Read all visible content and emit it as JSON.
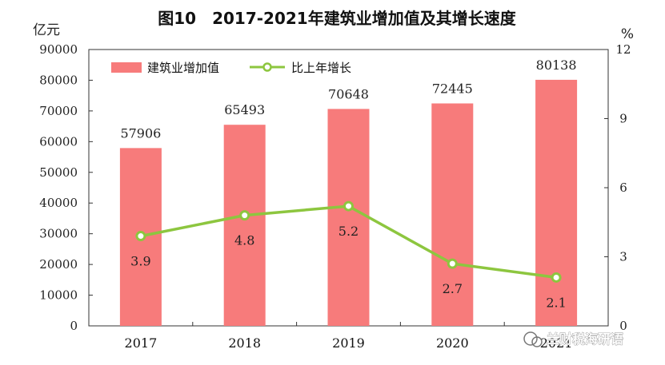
{
  "watermark": "兰财税海研语",
  "chart_data": {
    "type": "bar",
    "title": "图10　2017-2021年建筑业增加值及其增长速度",
    "categories": [
      "2017",
      "2018",
      "2019",
      "2020",
      "2021"
    ],
    "series": [
      {
        "name": "建筑业增加值",
        "type": "bar",
        "axis": "left",
        "values": [
          57906,
          65493,
          70648,
          72445,
          80138
        ],
        "labels": [
          "57906",
          "65493",
          "70648",
          "72445",
          "80138"
        ],
        "color": "#f77b7b"
      },
      {
        "name": "比上年增长",
        "type": "line",
        "axis": "right",
        "values": [
          3.9,
          4.8,
          5.2,
          2.7,
          2.1
        ],
        "labels": [
          "3.9",
          "4.8",
          "5.2",
          "2.7",
          "2.1"
        ],
        "color": "#8dc63f"
      }
    ],
    "y_left": {
      "unit": "亿元",
      "min": 0,
      "max": 90000,
      "ticks": [
        "0",
        "10000",
        "20000",
        "30000",
        "40000",
        "50000",
        "60000",
        "70000",
        "80000",
        "90000"
      ]
    },
    "y_right": {
      "unit": "%",
      "min": 0,
      "max": 12,
      "ticks": [
        "0",
        "3",
        "6",
        "9",
        "12"
      ]
    },
    "legend": "top-left",
    "grid": false
  }
}
